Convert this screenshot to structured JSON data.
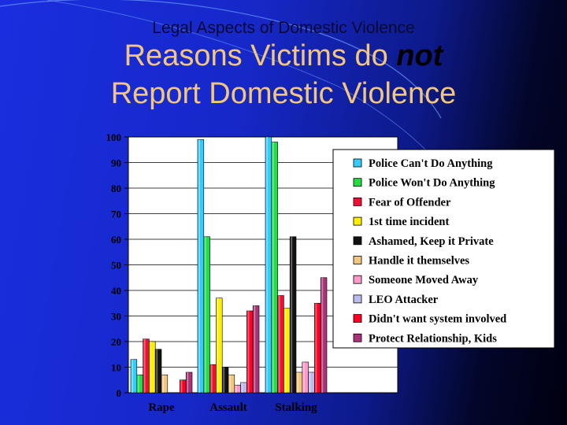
{
  "slide": {
    "subtitle": "Legal Aspects of Domestic Violence",
    "title_line1_before": "Reasons Victims do ",
    "title_line1_emphasis": "not",
    "title_line2": "Report Domestic Violence"
  },
  "colors": {
    "title": "#f2c77a",
    "subtitle": "#0a0a30",
    "background_start": "#1a2ee0",
    "background_end": "#000010"
  },
  "chart_data": {
    "type": "bar",
    "categories": [
      "Rape",
      "Assault",
      "Stalking"
    ],
    "ylim": [
      0,
      100
    ],
    "yticks": [
      "0",
      "10",
      "20",
      "30",
      "40",
      "50",
      "60",
      "70",
      "80",
      "90",
      "100"
    ],
    "grid": true,
    "legend_position": "right",
    "series": [
      {
        "name": "Police Can't Do Anything",
        "color": "#33ccff",
        "values": [
          13,
          99,
          100
        ]
      },
      {
        "name": "Police Won't Do Anything",
        "color": "#22dd44",
        "values": [
          7,
          61,
          98
        ]
      },
      {
        "name": "Fear of Offender",
        "color": "#ee1133",
        "values": [
          21,
          11,
          38
        ]
      },
      {
        "name": "1st time incident",
        "color": "#ffee00",
        "values": [
          20,
          37,
          33
        ]
      },
      {
        "name": "Ashamed, Keep it Private",
        "color": "#111111",
        "values": [
          17,
          10,
          61
        ]
      },
      {
        "name": "Handle it themselves",
        "color": "#f2c880",
        "values": [
          7,
          7,
          8
        ]
      },
      {
        "name": "Someone Moved Away",
        "color": "#ff99cc",
        "values": [
          0,
          3,
          12
        ]
      },
      {
        "name": "LEO Attacker",
        "color": "#bbbbee",
        "values": [
          0,
          4,
          8
        ]
      },
      {
        "name": "Didn't want system involved",
        "color": "#ff0022",
        "values": [
          5,
          32,
          35
        ]
      },
      {
        "name": "Protect Relationship, Kids",
        "color": "#aa3377",
        "values": [
          8,
          34,
          45
        ]
      }
    ]
  }
}
